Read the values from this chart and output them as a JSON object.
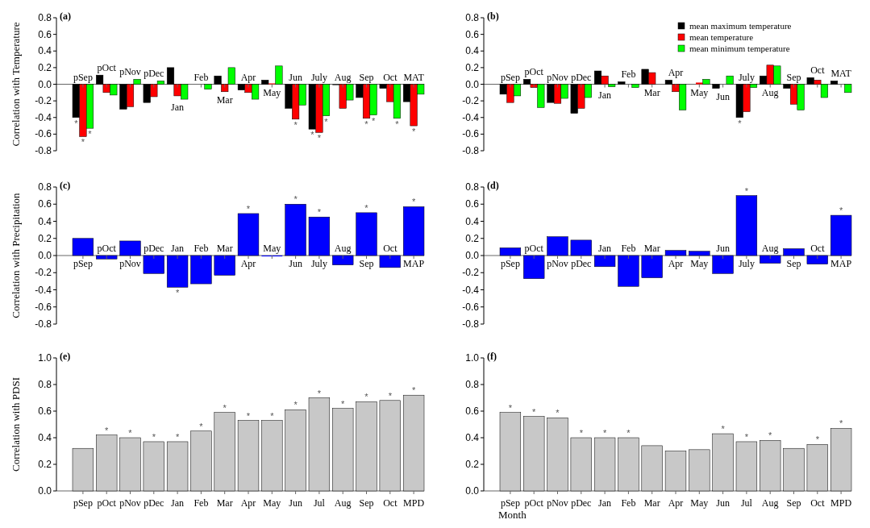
{
  "chart_data": [
    {
      "type": "bar",
      "title": "(a)",
      "ylabel": "Correlation with Temperature",
      "categories": [
        "pSep",
        "pOct",
        "pNov",
        "pDec",
        "Jan",
        "Feb",
        "Mar",
        "Apr",
        "May",
        "Jun",
        "July",
        "Aug",
        "Sep",
        "Oct",
        "MAT"
      ],
      "series": [
        {
          "color": "#000000",
          "values": [
            -0.4,
            0.11,
            -0.3,
            -0.22,
            0.2,
            0.0,
            0.1,
            -0.07,
            0.05,
            -0.29,
            -0.54,
            -0.01,
            -0.16,
            -0.05,
            -0.21
          ]
        },
        {
          "color": "#ff0000",
          "values": [
            -0.63,
            -0.1,
            -0.27,
            -0.15,
            -0.14,
            0.0,
            -0.09,
            -0.1,
            0.01,
            -0.42,
            -0.58,
            -0.29,
            -0.41,
            -0.21,
            -0.5
          ]
        },
        {
          "color": "#00ff00",
          "values": [
            -0.53,
            -0.13,
            0.06,
            0.04,
            -0.18,
            -0.06,
            0.2,
            -0.18,
            0.22,
            -0.25,
            -0.38,
            -0.19,
            -0.37,
            -0.41,
            -0.12
          ]
        }
      ],
      "ylim": [
        -0.8,
        0.8
      ],
      "yticks": [
        {
          "value": -0.8,
          "label": "-0.8"
        },
        {
          "value": -0.6,
          "label": "-0.6"
        },
        {
          "value": -0.4,
          "label": "-0.4"
        },
        {
          "value": -0.2,
          "label": "-0.2"
        },
        {
          "value": 0,
          "label": "0.0"
        },
        {
          "value": 0.2,
          "label": "0.2"
        },
        {
          "value": 0.4,
          "label": "0.4"
        },
        {
          "value": 0.6,
          "label": "0.6"
        },
        {
          "value": 0.8,
          "label": "0.8"
        }
      ],
      "legend": false,
      "annotations": [
        {
          "text": "*",
          "x": "pSep",
          "y": -0.4
        },
        {
          "text": "*",
          "x": "pSep",
          "y": -0.63
        },
        {
          "text": "*",
          "x": "pSep",
          "y": -0.53
        },
        {
          "text": "*",
          "x": "Jun",
          "y": -0.42
        },
        {
          "text": "*",
          "x": "July",
          "y": -0.54
        },
        {
          "text": "*",
          "x": "July",
          "y": -0.58
        },
        {
          "text": "*",
          "x": "July",
          "y": -0.38
        },
        {
          "text": "*",
          "x": "Sep",
          "y": -0.41
        },
        {
          "text": "*",
          "x": "Sep",
          "y": -0.37
        },
        {
          "text": "*",
          "x": "Oct",
          "y": -0.41
        },
        {
          "text": "*",
          "x": "MAT",
          "y": -0.5
        }
      ]
    },
    {
      "type": "bar",
      "title": "(b)",
      "categories": [
        "pSep",
        "pOct",
        "pNov",
        "pDec",
        "Jan",
        "Feb",
        "Mar",
        "Apr",
        "May",
        "Jun",
        "July",
        "Aug",
        "Sep",
        "Oct",
        "MAT"
      ],
      "series": [
        {
          "name": "mean maximum temperature",
          "color": "#000000",
          "values": [
            -0.12,
            0.06,
            -0.22,
            -0.35,
            0.16,
            0.03,
            0.18,
            0.05,
            0.0,
            -0.05,
            -0.4,
            0.1,
            -0.05,
            0.08,
            0.04
          ]
        },
        {
          "name": "mean temperature",
          "color": "#ff0000",
          "values": [
            -0.22,
            -0.04,
            -0.23,
            -0.29,
            0.1,
            0.0,
            0.14,
            -0.09,
            0.02,
            0.0,
            -0.33,
            0.23,
            -0.24,
            0.05,
            0.0
          ]
        },
        {
          "name": "mean minimum temperature",
          "color": "#00ff00",
          "values": [
            -0.14,
            -0.28,
            -0.17,
            -0.16,
            -0.03,
            -0.04,
            0.0,
            -0.31,
            0.06,
            0.1,
            -0.04,
            0.22,
            -0.31,
            -0.16,
            -0.1
          ]
        }
      ],
      "ylim": [
        -0.8,
        0.8
      ],
      "yticks": [
        {
          "value": -0.8,
          "label": "-0.8"
        },
        {
          "value": -0.6,
          "label": "-0.6"
        },
        {
          "value": -0.4,
          "label": "-0.4"
        },
        {
          "value": -0.2,
          "label": "-0.2"
        },
        {
          "value": 0,
          "label": "0.0"
        },
        {
          "value": 0.2,
          "label": "0.2"
        },
        {
          "value": 0.4,
          "label": "0.4"
        },
        {
          "value": 0.6,
          "label": "0.6"
        },
        {
          "value": 0.8,
          "label": "0.8"
        }
      ],
      "legend": "top right",
      "annotations": [
        {
          "text": "*",
          "x": "July",
          "y": -0.4
        }
      ]
    },
    {
      "type": "bar",
      "title": "(c)",
      "ylabel": "Correlation with Precipitation",
      "categories": [
        "pSep",
        "pOct",
        "pNov",
        "pDec",
        "Jan",
        "Feb",
        "Mar",
        "Apr",
        "May",
        "Jun",
        "July",
        "Aug",
        "Sep",
        "Oct",
        "MAP"
      ],
      "series": [
        {
          "color": "#0000ff",
          "values": [
            0.2,
            -0.04,
            0.17,
            -0.21,
            -0.37,
            -0.33,
            -0.23,
            0.49,
            -0.01,
            0.6,
            0.45,
            -0.11,
            0.5,
            -0.14,
            0.57
          ]
        }
      ],
      "ylim": [
        -0.8,
        0.8
      ],
      "yticks": [
        {
          "value": -0.8,
          "label": "-0.8"
        },
        {
          "value": -0.6,
          "label": "-0.6"
        },
        {
          "value": -0.4,
          "label": "-0.4"
        },
        {
          "value": -0.2,
          "label": "-0.2"
        },
        {
          "value": 0,
          "label": "0.0"
        },
        {
          "value": 0.2,
          "label": "0.2"
        },
        {
          "value": 0.4,
          "label": "0.4"
        },
        {
          "value": 0.6,
          "label": "0.6"
        },
        {
          "value": 0.8,
          "label": "0.8"
        }
      ],
      "legend": false,
      "annotations": [
        {
          "text": "*",
          "x": "Jan",
          "y": -0.37
        },
        {
          "text": "*",
          "x": "Apr",
          "y": 0.49
        },
        {
          "text": "*",
          "x": "Jun",
          "y": 0.6
        },
        {
          "text": "*",
          "x": "July",
          "y": 0.45
        },
        {
          "text": "*",
          "x": "Sep",
          "y": 0.5
        },
        {
          "text": "*",
          "x": "MAP",
          "y": 0.57
        }
      ]
    },
    {
      "type": "bar",
      "title": "(d)",
      "categories": [
        "pSep",
        "pOct",
        "pNov",
        "pDec",
        "Jan",
        "Feb",
        "Mar",
        "Apr",
        "May",
        "Jun",
        "July",
        "Aug",
        "Sep",
        "Oct",
        "MAP"
      ],
      "series": [
        {
          "color": "#0000ff",
          "values": [
            0.09,
            -0.27,
            0.22,
            0.18,
            -0.13,
            -0.36,
            -0.26,
            0.06,
            0.05,
            -0.21,
            0.7,
            -0.09,
            0.08,
            -0.1,
            0.47
          ]
        }
      ],
      "ylim": [
        -0.8,
        0.8
      ],
      "yticks": [
        {
          "value": -0.8,
          "label": "-0.8"
        },
        {
          "value": -0.6,
          "label": "-0.6"
        },
        {
          "value": -0.4,
          "label": "-0.4"
        },
        {
          "value": -0.2,
          "label": "-0.2"
        },
        {
          "value": 0,
          "label": "0.0"
        },
        {
          "value": 0.2,
          "label": "0.2"
        },
        {
          "value": 0.4,
          "label": "0.4"
        },
        {
          "value": 0.6,
          "label": "0.6"
        },
        {
          "value": 0.8,
          "label": "0.8"
        }
      ],
      "legend": false,
      "annotations": [
        {
          "text": "*",
          "x": "July",
          "y": 0.7
        },
        {
          "text": "*",
          "x": "MAP",
          "y": 0.47
        }
      ]
    },
    {
      "type": "bar",
      "title": "(e)",
      "ylabel": "Correlation with PDSI",
      "categories": [
        "pSep",
        "pOct",
        "pNov",
        "pDec",
        "Jan",
        "Feb",
        "Mar",
        "Apr",
        "May",
        "Jun",
        "Jul",
        "Aug",
        "Sep",
        "Oct",
        "MPD"
      ],
      "series": [
        {
          "color": "#c8c8c8",
          "values": [
            0.32,
            0.42,
            0.4,
            0.37,
            0.37,
            0.45,
            0.59,
            0.53,
            0.53,
            0.61,
            0.7,
            0.62,
            0.67,
            0.68,
            0.72
          ]
        }
      ],
      "ylim": [
        0,
        1
      ],
      "yticks": [
        {
          "value": 0,
          "label": "0.0"
        },
        {
          "value": 0.2,
          "label": "0.2"
        },
        {
          "value": 0.4,
          "label": "0.4"
        },
        {
          "value": 0.6,
          "label": "0.6"
        },
        {
          "value": 0.8,
          "label": "0.8"
        },
        {
          "value": 1,
          "label": "1.0"
        }
      ],
      "legend": false,
      "annotations": [
        {
          "text": "*",
          "x": "pOct",
          "y": 0.42
        },
        {
          "text": "*",
          "x": "pNov",
          "y": 0.4
        },
        {
          "text": "*",
          "x": "pDec",
          "y": 0.37
        },
        {
          "text": "*",
          "x": "Jan",
          "y": 0.37
        },
        {
          "text": "*",
          "x": "Feb",
          "y": 0.45
        },
        {
          "text": "*",
          "x": "Mar",
          "y": 0.59
        },
        {
          "text": "*",
          "x": "Apr",
          "y": 0.53
        },
        {
          "text": "*",
          "x": "May",
          "y": 0.53
        },
        {
          "text": "*",
          "x": "Jun",
          "y": 0.61
        },
        {
          "text": "*",
          "x": "Jul",
          "y": 0.7
        },
        {
          "text": "*",
          "x": "Aug",
          "y": 0.62
        },
        {
          "text": "*",
          "x": "Sep",
          "y": 0.67
        },
        {
          "text": "*",
          "x": "Oct",
          "y": 0.68
        },
        {
          "text": "*",
          "x": "MPD",
          "y": 0.72
        }
      ]
    },
    {
      "type": "bar",
      "title": "(f)",
      "xlabel": "Month",
      "categories": [
        "pSep",
        "pOct",
        "pNov",
        "pDec",
        "Jan",
        "Feb",
        "Mar",
        "Apr",
        "May",
        "Jun",
        "Jul",
        "Aug",
        "Sep",
        "Oct",
        "MPD"
      ],
      "series": [
        {
          "color": "#c8c8c8",
          "values": [
            0.59,
            0.56,
            0.55,
            0.4,
            0.4,
            0.4,
            0.34,
            0.3,
            0.31,
            0.43,
            0.37,
            0.38,
            0.32,
            0.35,
            0.47
          ]
        }
      ],
      "ylim": [
        0,
        1
      ],
      "yticks": [
        {
          "value": 0,
          "label": "0.0"
        },
        {
          "value": 0.2,
          "label": "0.2"
        },
        {
          "value": 0.4,
          "label": "0.4"
        },
        {
          "value": 0.6,
          "label": "0.6"
        },
        {
          "value": 0.8,
          "label": "0.8"
        },
        {
          "value": 1,
          "label": "1.0"
        }
      ],
      "legend": false,
      "annotations": [
        {
          "text": "*",
          "x": "pSep",
          "y": 0.59
        },
        {
          "text": "*",
          "x": "pOct",
          "y": 0.56
        },
        {
          "text": "*",
          "x": "pNov",
          "y": 0.55
        },
        {
          "text": "*",
          "x": "pDec",
          "y": 0.4
        },
        {
          "text": "*",
          "x": "Jan",
          "y": 0.4
        },
        {
          "text": "*",
          "x": "Feb",
          "y": 0.4
        },
        {
          "text": "*",
          "x": "Jun",
          "y": 0.43
        },
        {
          "text": "*",
          "x": "Jul",
          "y": 0.37
        },
        {
          "text": "*",
          "x": "Aug",
          "y": 0.38
        },
        {
          "text": "*",
          "x": "Oct",
          "y": 0.35
        },
        {
          "text": "*",
          "x": "MPD",
          "y": 0.47
        }
      ]
    }
  ]
}
